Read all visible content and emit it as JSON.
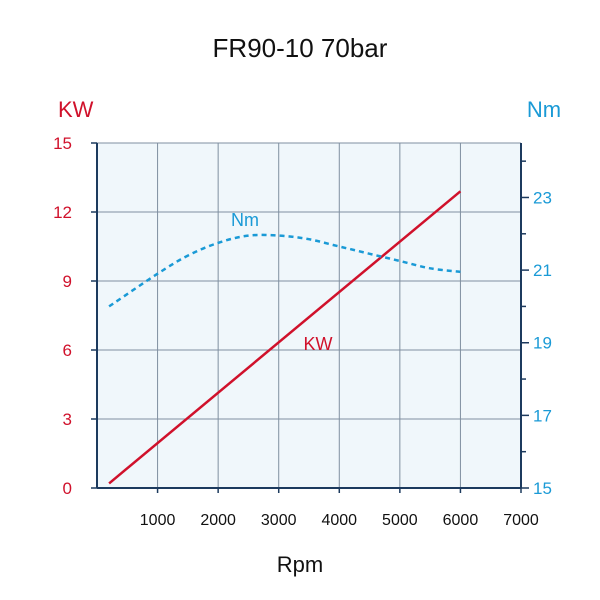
{
  "chart_data": {
    "type": "line",
    "title": "FR90-10 70bar",
    "xlabel": "Rpm",
    "ylabel_left": "KW",
    "ylabel_right": "Nm",
    "xlim": [
      0,
      7000
    ],
    "ylim_left": [
      0,
      15
    ],
    "ylim_right": [
      15,
      24.5
    ],
    "x_ticks": [
      1000,
      2000,
      3000,
      4000,
      5000,
      6000,
      7000
    ],
    "y_ticks_left": [
      0,
      3,
      6,
      9,
      12,
      15
    ],
    "y_ticks_right": [
      15,
      17,
      19,
      21,
      23
    ],
    "grid": true,
    "series": [
      {
        "name": "KW",
        "axis": "left",
        "style": "solid",
        "x": [
          200,
          6000
        ],
        "y": [
          0.2,
          12.9
        ]
      },
      {
        "name": "Nm",
        "axis": "right",
        "style": "dashed",
        "x": [
          200,
          1000,
          1500,
          2000,
          2500,
          3000,
          3500,
          4000,
          4500,
          5000,
          5500,
          6000
        ],
        "y": [
          20.0,
          20.9,
          21.4,
          21.75,
          21.95,
          21.95,
          21.85,
          21.65,
          21.45,
          21.25,
          21.05,
          20.95
        ]
      }
    ],
    "colors": {
      "kw": "#d0112b",
      "nm": "#1a9ad6",
      "plot_bg": "#f0f7fb",
      "grid": "#7f8fa0",
      "axis": "#1c3a5e"
    }
  }
}
